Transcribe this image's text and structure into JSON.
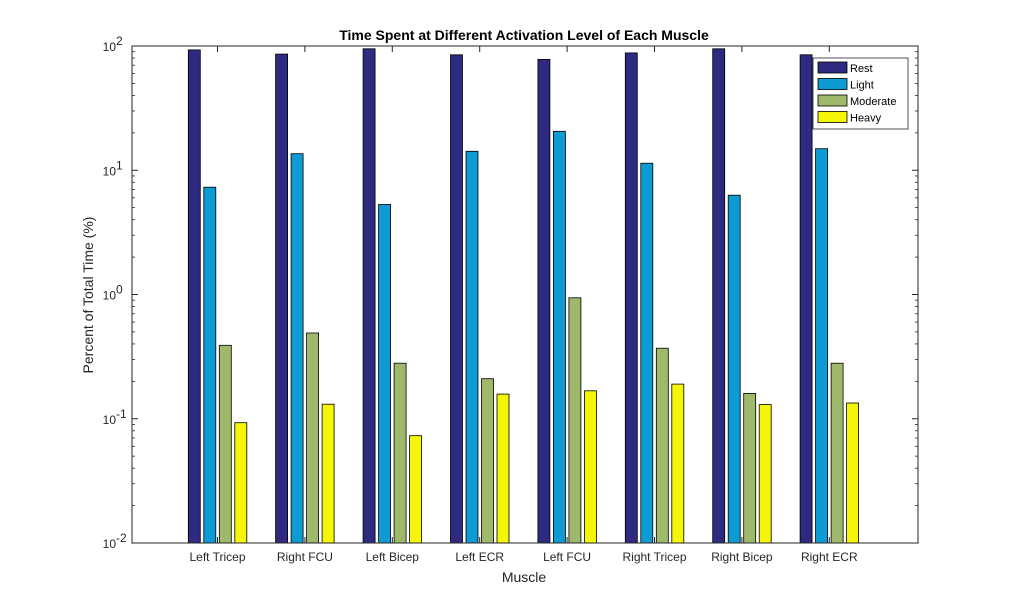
{
  "chart_data": {
    "type": "bar",
    "title": "Time Spent at Different Activation Level of Each Muscle",
    "xlabel": "Muscle",
    "ylabel": "Percent of Total Time (%)",
    "yscale": "log",
    "ylim": [
      0.01,
      100
    ],
    "yticks": [
      {
        "value": 0.01,
        "mantissa": "10",
        "exponent": "-2"
      },
      {
        "value": 0.1,
        "mantissa": "10",
        "exponent": "-1"
      },
      {
        "value": 1,
        "mantissa": "10",
        "exponent": "0"
      },
      {
        "value": 10,
        "mantissa": "10",
        "exponent": "1"
      },
      {
        "value": 100,
        "mantissa": "10",
        "exponent": "2"
      }
    ],
    "grid": false,
    "legend_position": "top-right",
    "categories": [
      "Left Tricep",
      "Right FCU",
      "Left Bicep",
      "Left ECR",
      "Left FCU",
      "Right Tricep",
      "Right Bicep",
      "Right ECR"
    ],
    "series": [
      {
        "name": "Rest",
        "color": "#2e2a7f",
        "values": [
          93,
          86,
          95,
          85,
          78,
          88,
          95,
          85
        ]
      },
      {
        "name": "Light",
        "color": "#0e9bd3",
        "values": [
          7.3,
          13.6,
          5.3,
          14.2,
          20.6,
          11.4,
          6.3,
          14.9
        ]
      },
      {
        "name": "Moderate",
        "color": "#9fb96b",
        "values": [
          0.39,
          0.49,
          0.28,
          0.21,
          0.94,
          0.37,
          0.16,
          0.28
        ]
      },
      {
        "name": "Heavy",
        "color": "#f5f508",
        "values": [
          0.093,
          0.131,
          0.073,
          0.158,
          0.168,
          0.19,
          0.13,
          0.134
        ]
      }
    ]
  }
}
